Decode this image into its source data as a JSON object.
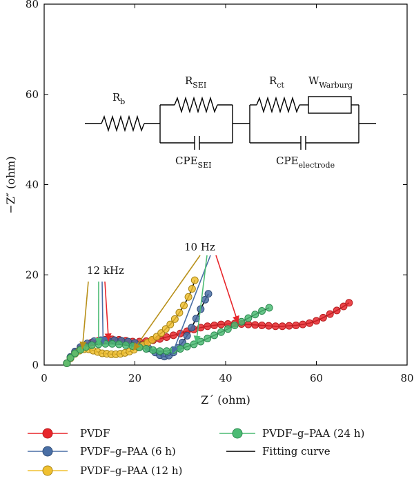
{
  "chart_data": {
    "type": "scatter",
    "title": "",
    "xlabel": "Z´ (ohm)",
    "ylabel": "−Z″ (ohm)",
    "xlim": [
      0,
      80
    ],
    "ylim": [
      0,
      80
    ],
    "xticks": [
      "0",
      "20",
      "40",
      "60",
      "80"
    ],
    "yticks": [
      "0",
      "20",
      "40",
      "60",
      "80"
    ],
    "grid": false,
    "legend_placement": "bottom",
    "series": [
      {
        "name": "PVDF",
        "color": "#e8262b",
        "points": [
          [
            5.0,
            0.4
          ],
          [
            5.8,
            1.7
          ],
          [
            6.8,
            2.8
          ],
          [
            8.0,
            3.7
          ],
          [
            9.2,
            4.4
          ],
          [
            10.5,
            5.0
          ],
          [
            12.0,
            5.4
          ],
          [
            13.5,
            5.6
          ],
          [
            15.0,
            5.7
          ],
          [
            16.5,
            5.6
          ],
          [
            18.0,
            5.4
          ],
          [
            19.5,
            5.2
          ],
          [
            21.0,
            5.2
          ],
          [
            22.5,
            5.3
          ],
          [
            24.0,
            5.5
          ],
          [
            25.5,
            5.8
          ],
          [
            27.0,
            6.2
          ],
          [
            28.5,
            6.6
          ],
          [
            30.0,
            7.0
          ],
          [
            31.5,
            7.5
          ],
          [
            33.0,
            7.9
          ],
          [
            34.5,
            8.3
          ],
          [
            36.0,
            8.6
          ],
          [
            37.5,
            8.8
          ],
          [
            39.0,
            9.0
          ],
          [
            40.5,
            9.1
          ],
          [
            42.0,
            9.2
          ],
          [
            43.5,
            9.1
          ],
          [
            45.0,
            9.0
          ],
          [
            46.5,
            8.9
          ],
          [
            48.0,
            8.8
          ],
          [
            49.5,
            8.7
          ],
          [
            51.0,
            8.6
          ],
          [
            52.5,
            8.6
          ],
          [
            54.0,
            8.7
          ],
          [
            55.5,
            8.8
          ],
          [
            57.0,
            9.0
          ],
          [
            58.5,
            9.3
          ],
          [
            60.0,
            9.8
          ],
          [
            61.5,
            10.5
          ],
          [
            63.0,
            11.3
          ],
          [
            64.5,
            12.1
          ],
          [
            66.0,
            13.0
          ],
          [
            67.2,
            13.8
          ]
        ]
      },
      {
        "name": "PVDF–g–PAA (6 h)",
        "color": "#4a6fa5",
        "points": [
          [
            5.0,
            0.4
          ],
          [
            5.8,
            1.8
          ],
          [
            6.8,
            3.0
          ],
          [
            8.0,
            4.0
          ],
          [
            9.5,
            4.8
          ],
          [
            11.0,
            5.3
          ],
          [
            12.5,
            5.5
          ],
          [
            14.0,
            5.5
          ],
          [
            15.5,
            5.5
          ],
          [
            17.0,
            5.4
          ],
          [
            18.5,
            5.2
          ],
          [
            20.0,
            4.9
          ],
          [
            21.5,
            4.4
          ],
          [
            23.0,
            3.7
          ],
          [
            24.5,
            2.8
          ],
          [
            25.5,
            2.2
          ],
          [
            26.5,
            1.9
          ],
          [
            27.5,
            2.1
          ],
          [
            28.5,
            2.8
          ],
          [
            29.5,
            3.8
          ],
          [
            30.5,
            5.0
          ],
          [
            31.5,
            6.5
          ],
          [
            32.5,
            8.3
          ],
          [
            33.5,
            10.3
          ],
          [
            34.5,
            12.4
          ],
          [
            35.5,
            14.5
          ],
          [
            36.2,
            15.8
          ]
        ]
      },
      {
        "name": "PVDF–g–PAA (12 h)",
        "color": "#f0c030",
        "points": [
          [
            5.0,
            0.4
          ],
          [
            5.8,
            1.5
          ],
          [
            6.8,
            2.5
          ],
          [
            7.8,
            3.2
          ],
          [
            8.8,
            3.5
          ],
          [
            9.8,
            3.5
          ],
          [
            10.8,
            3.2
          ],
          [
            11.8,
            2.9
          ],
          [
            12.8,
            2.6
          ],
          [
            13.8,
            2.5
          ],
          [
            14.8,
            2.4
          ],
          [
            15.8,
            2.4
          ],
          [
            16.8,
            2.5
          ],
          [
            17.8,
            2.7
          ],
          [
            18.8,
            3.0
          ],
          [
            19.8,
            3.4
          ],
          [
            20.8,
            3.9
          ],
          [
            21.8,
            4.4
          ],
          [
            22.8,
            5.0
          ],
          [
            23.8,
            5.6
          ],
          [
            24.8,
            6.3
          ],
          [
            25.8,
            7.1
          ],
          [
            26.8,
            8.0
          ],
          [
            27.8,
            9.0
          ],
          [
            28.8,
            10.2
          ],
          [
            29.8,
            11.6
          ],
          [
            30.8,
            13.2
          ],
          [
            31.8,
            15.1
          ],
          [
            32.6,
            16.9
          ],
          [
            33.2,
            18.8
          ]
        ]
      },
      {
        "name": "PVDF–g–PAA (24 h)",
        "color": "#4cbc74",
        "points": [
          [
            5.0,
            0.4
          ],
          [
            5.8,
            1.6
          ],
          [
            6.8,
            2.6
          ],
          [
            8.0,
            3.4
          ],
          [
            9.2,
            4.0
          ],
          [
            10.5,
            4.4
          ],
          [
            12.0,
            4.6
          ],
          [
            13.5,
            4.7
          ],
          [
            15.0,
            4.7
          ],
          [
            16.5,
            4.6
          ],
          [
            18.0,
            4.4
          ],
          [
            19.5,
            4.2
          ],
          [
            21.0,
            3.9
          ],
          [
            22.5,
            3.6
          ],
          [
            24.0,
            3.3
          ],
          [
            25.5,
            3.1
          ],
          [
            27.0,
            3.1
          ],
          [
            28.5,
            3.3
          ],
          [
            30.0,
            3.6
          ],
          [
            31.5,
            4.1
          ],
          [
            33.0,
            4.6
          ],
          [
            34.5,
            5.2
          ],
          [
            36.0,
            5.9
          ],
          [
            37.5,
            6.6
          ],
          [
            39.0,
            7.3
          ],
          [
            40.5,
            8.0
          ],
          [
            42.0,
            8.8
          ],
          [
            43.5,
            9.6
          ],
          [
            45.0,
            10.4
          ],
          [
            46.5,
            11.2
          ],
          [
            48.0,
            12.0
          ],
          [
            49.6,
            12.7
          ]
        ]
      },
      {
        "name": "Fitting curve",
        "color": "#000000"
      }
    ],
    "annotations": {
      "high_freq": "12 kHz",
      "low_freq": "10 Hz"
    },
    "circuit_labels": {
      "rb": "R",
      "rb_sub": "b",
      "rsei": "R",
      "rsei_sub": "SEI",
      "rct": "R",
      "rct_sub": "ct",
      "w": "W",
      "w_sub": "Warburg",
      "cpesei": "CPE",
      "cpesei_sub": "SEI",
      "cpeel": "CPE",
      "cpeel_sub": "electrode"
    }
  }
}
